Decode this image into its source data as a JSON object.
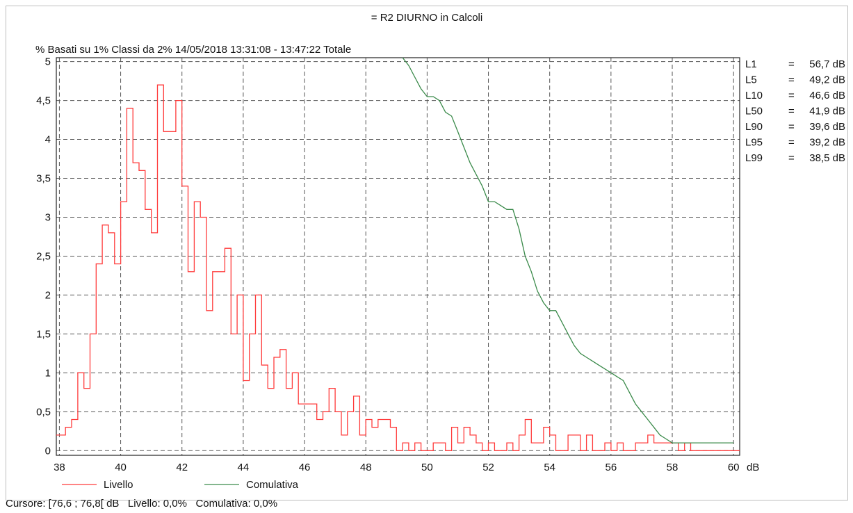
{
  "chart_data": {
    "type": "line",
    "title": "= R2 DIURNO in Calcoli",
    "subtitle": "%   Basati su 1%   Classi da 2%  14/05/2018 13:31:08 - 13:47:22  Totale",
    "xlabel": "dB",
    "ylabel": "%",
    "xlim": [
      37.9,
      60.2
    ],
    "ylim": [
      -0.06,
      5.05
    ],
    "x_ticks": [
      "38",
      "40",
      "42",
      "44",
      "46",
      "48",
      "50",
      "52",
      "54",
      "56",
      "58",
      "60"
    ],
    "y_ticks": [
      "0",
      "0,5",
      "1",
      "1,5",
      "2",
      "2,5",
      "3",
      "3,5",
      "4",
      "4,5",
      "5"
    ],
    "grid": true,
    "legend_position": "bottom-left",
    "series": [
      {
        "name": "Livello",
        "color": "#ff3b3b",
        "step": true,
        "x": [
          37.9,
          38.2,
          38.4,
          38.6,
          38.8,
          39.0,
          39.2,
          39.4,
          39.6,
          39.8,
          40.0,
          40.2,
          40.4,
          40.6,
          40.8,
          41.0,
          41.2,
          41.4,
          41.6,
          41.8,
          42.0,
          42.2,
          42.4,
          42.6,
          42.8,
          43.0,
          43.2,
          43.4,
          43.6,
          43.8,
          44.0,
          44.2,
          44.4,
          44.6,
          44.8,
          45.0,
          45.2,
          45.4,
          45.6,
          45.8,
          46.0,
          46.2,
          46.4,
          46.6,
          46.8,
          47.0,
          47.2,
          47.4,
          47.6,
          47.8,
          48.0,
          48.2,
          48.4,
          48.6,
          48.8,
          49.0,
          49.2,
          49.4,
          49.6,
          49.8,
          50.0,
          50.2,
          50.4,
          50.6,
          50.8,
          51.0,
          51.2,
          51.4,
          51.6,
          51.8,
          52.0,
          52.2,
          52.4,
          52.6,
          52.8,
          53.0,
          53.2,
          53.4,
          53.6,
          53.8,
          54.0,
          54.2,
          54.4,
          54.6,
          54.8,
          55.0,
          55.2,
          55.4,
          55.6,
          55.8,
          56.0,
          56.2,
          56.4,
          56.6,
          56.8,
          57.0,
          57.2,
          57.4,
          57.6,
          57.8,
          58.0,
          58.2,
          58.4,
          58.6,
          58.8,
          59.0,
          59.2,
          59.4,
          59.6,
          59.8,
          60.0
        ],
        "values": [
          0.2,
          0.3,
          0.4,
          1.0,
          0.8,
          1.5,
          2.4,
          2.9,
          2.8,
          2.4,
          3.2,
          4.4,
          3.7,
          3.6,
          3.1,
          2.8,
          4.7,
          4.1,
          4.1,
          4.5,
          3.4,
          2.3,
          3.2,
          3.0,
          1.8,
          2.3,
          2.3,
          2.6,
          1.5,
          2.0,
          0.9,
          1.5,
          2.0,
          1.1,
          0.8,
          1.2,
          1.3,
          0.8,
          1.0,
          0.6,
          0.6,
          0.6,
          0.4,
          0.5,
          0.8,
          0.5,
          0.2,
          0.5,
          0.7,
          0.2,
          0.4,
          0.3,
          0.4,
          0.4,
          0.3,
          0.0,
          0.1,
          0.0,
          0.1,
          0.0,
          0.0,
          0.1,
          0.1,
          0.0,
          0.3,
          0.1,
          0.3,
          0.2,
          0.1,
          0.0,
          0.1,
          0.0,
          0.0,
          0.1,
          0.0,
          0.2,
          0.4,
          0.1,
          0.1,
          0.3,
          0.2,
          0.0,
          0.0,
          0.2,
          0.2,
          0.0,
          0.2,
          0.0,
          0.0,
          0.1,
          0.0,
          0.1,
          0.0,
          0.0,
          0.1,
          0.1,
          0.2,
          0.1,
          0.1,
          0.1,
          0.1,
          0.0,
          0.1,
          0.0,
          0.0,
          0.0,
          0.0,
          0.0,
          0.0,
          0.0,
          0.0
        ]
      },
      {
        "name": "Comulativa",
        "color": "#3a8a4a",
        "step": false,
        "x": [
          49.2,
          49.4,
          49.6,
          49.8,
          50.0,
          50.2,
          50.4,
          50.6,
          50.8,
          51.0,
          51.2,
          51.4,
          51.6,
          51.8,
          52.0,
          52.2,
          52.4,
          52.6,
          52.8,
          53.0,
          53.2,
          53.4,
          53.6,
          53.8,
          54.0,
          54.2,
          54.4,
          54.6,
          54.8,
          55.0,
          55.2,
          55.4,
          55.6,
          55.8,
          56.0,
          56.2,
          56.4,
          56.6,
          56.8,
          57.0,
          57.2,
          57.4,
          57.6,
          57.8,
          58.0,
          58.2,
          58.4,
          58.6,
          58.8,
          59.0,
          59.2,
          59.4,
          59.6,
          59.8,
          60.0
        ],
        "values": [
          5.05,
          4.95,
          4.8,
          4.65,
          4.55,
          4.55,
          4.5,
          4.35,
          4.3,
          4.1,
          3.9,
          3.7,
          3.55,
          3.4,
          3.2,
          3.2,
          3.15,
          3.1,
          3.1,
          2.85,
          2.5,
          2.3,
          2.05,
          1.9,
          1.8,
          1.8,
          1.65,
          1.5,
          1.35,
          1.25,
          1.2,
          1.15,
          1.1,
          1.05,
          1.0,
          0.95,
          0.9,
          0.75,
          0.6,
          0.5,
          0.4,
          0.3,
          0.2,
          0.15,
          0.1,
          0.1,
          0.1,
          0.1,
          0.1,
          0.1,
          0.1,
          0.1,
          0.1,
          0.1,
          0.1
        ]
      }
    ],
    "percentiles": [
      {
        "label": "L1",
        "eq": "=",
        "value": "56,7 dB"
      },
      {
        "label": "L5",
        "eq": "=",
        "value": "49,2 dB"
      },
      {
        "label": "L10",
        "eq": "=",
        "value": "46,6 dB"
      },
      {
        "label": "L50",
        "eq": "=",
        "value": "41,9 dB"
      },
      {
        "label": "L90",
        "eq": "=",
        "value": "39,6 dB"
      },
      {
        "label": "L95",
        "eq": "=",
        "value": "39,2 dB"
      },
      {
        "label": "L99",
        "eq": "=",
        "value": "38,5 dB"
      }
    ]
  },
  "status": {
    "cursor": "Cursore: [76,6 ; 76,8[ dB   Livello: 0,0%   Comulativa: 0,0%"
  }
}
